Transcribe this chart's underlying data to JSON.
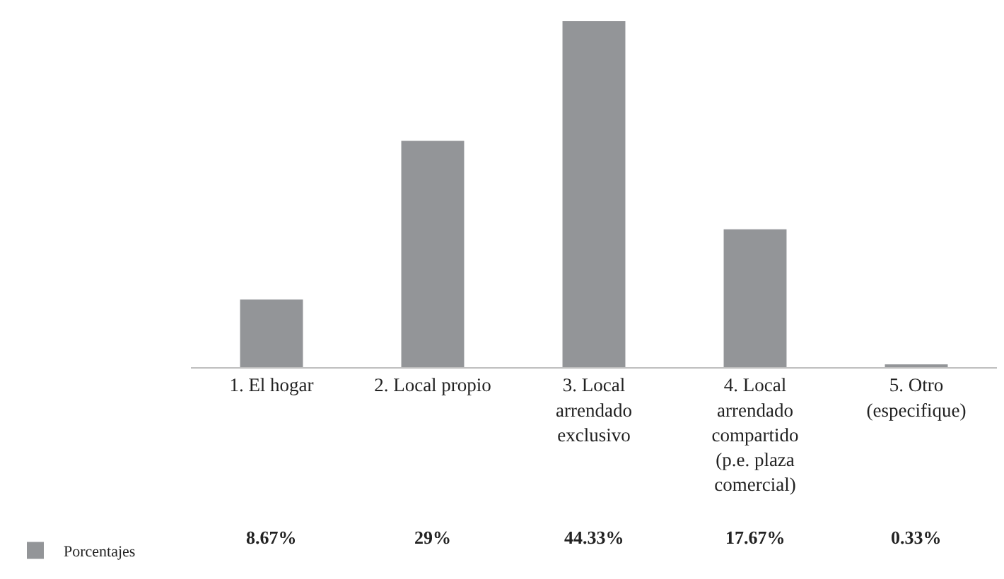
{
  "chart_data": {
    "type": "bar",
    "categories": [
      "1. El hogar",
      "2. Local propio",
      "3. Local arrendado exclusivo",
      "4. Local arrendado compartido (p.e. plaza comercial)",
      "5. Otro (especifique)"
    ],
    "series": [
      {
        "name": "Porcentajes",
        "color": "#939598",
        "values": [
          8.67,
          29,
          44.33,
          17.67,
          0.33
        ],
        "value_labels": [
          "8.67%",
          "29%",
          "44.33%",
          "17.67%",
          "0.33%"
        ]
      }
    ],
    "legend": "bottom left"
  }
}
